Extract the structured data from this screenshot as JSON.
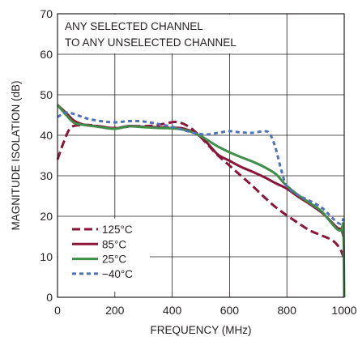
{
  "chart_data": {
    "type": "line",
    "title": "",
    "xlabel": "FREQUENCY (MHz)",
    "ylabel": "MAGNITUDE ISOLATION (dB)",
    "xlim": [
      0,
      1000
    ],
    "ylim": [
      0,
      70
    ],
    "x_ticks": [
      0,
      200,
      400,
      600,
      800,
      1000
    ],
    "y_ticks": [
      0,
      10,
      20,
      30,
      40,
      50,
      60,
      70
    ],
    "grid": true,
    "annotation_lines": [
      "ANY SELECTED CHANNEL",
      "TO ANY UNSELECTED CHANNEL"
    ],
    "legend_position": "bottom-left",
    "series": [
      {
        "name": "125°C",
        "color": "#8b1538",
        "dash": "long-dash",
        "points": [
          [
            0,
            34
          ],
          [
            20,
            38
          ],
          [
            45,
            41.8
          ],
          [
            80,
            42.5
          ],
          [
            120,
            42.5
          ],
          [
            160,
            42
          ],
          [
            200,
            41.8
          ],
          [
            260,
            42.2
          ],
          [
            320,
            42.3
          ],
          [
            370,
            42.8
          ],
          [
            410,
            43.3
          ],
          [
            440,
            42.8
          ],
          [
            470,
            41.5
          ],
          [
            500,
            39.5
          ],
          [
            530,
            37.2
          ],
          [
            560,
            35
          ],
          [
            600,
            32.5
          ],
          [
            640,
            30
          ],
          [
            680,
            27.5
          ],
          [
            720,
            24.8
          ],
          [
            760,
            22.3
          ],
          [
            800,
            20.2
          ],
          [
            840,
            18.3
          ],
          [
            880,
            16.5
          ],
          [
            920,
            15.3
          ],
          [
            960,
            14
          ],
          [
            985,
            12
          ],
          [
            997,
            10
          ]
        ]
      },
      {
        "name": "85°C",
        "color": "#8b1538",
        "dash": "solid",
        "points": [
          [
            0,
            47.5
          ],
          [
            30,
            45.5
          ],
          [
            60,
            43.5
          ],
          [
            100,
            42.5
          ],
          [
            150,
            42.2
          ],
          [
            200,
            41.7
          ],
          [
            250,
            42.3
          ],
          [
            300,
            42.1
          ],
          [
            350,
            42
          ],
          [
            400,
            41.8
          ],
          [
            430,
            41.8
          ],
          [
            460,
            41.2
          ],
          [
            500,
            39.6
          ],
          [
            530,
            37.5
          ],
          [
            560,
            35.2
          ],
          [
            600,
            33.7
          ],
          [
            640,
            32.2
          ],
          [
            680,
            31
          ],
          [
            720,
            29.7
          ],
          [
            760,
            28.2
          ],
          [
            800,
            26.8
          ],
          [
            840,
            24.8
          ],
          [
            880,
            23
          ],
          [
            920,
            21
          ],
          [
            950,
            19
          ],
          [
            975,
            17.2
          ],
          [
            990,
            16.7
          ],
          [
            997,
            15
          ]
        ]
      },
      {
        "name": "25°C",
        "color": "#3f8f4a",
        "dash": "solid",
        "points": [
          [
            0,
            47.5
          ],
          [
            30,
            45
          ],
          [
            60,
            43
          ],
          [
            100,
            42.5
          ],
          [
            150,
            42
          ],
          [
            200,
            41.6
          ],
          [
            250,
            42.2
          ],
          [
            300,
            42
          ],
          [
            350,
            41.8
          ],
          [
            400,
            41.7
          ],
          [
            430,
            41.5
          ],
          [
            460,
            41
          ],
          [
            500,
            39.8
          ],
          [
            530,
            38.5
          ],
          [
            560,
            37.2
          ],
          [
            600,
            35.8
          ],
          [
            640,
            34.6
          ],
          [
            680,
            33.5
          ],
          [
            720,
            32.2
          ],
          [
            760,
            30.5
          ],
          [
            780,
            29
          ],
          [
            800,
            27.5
          ],
          [
            840,
            25.2
          ],
          [
            880,
            23.3
          ],
          [
            920,
            21.3
          ],
          [
            950,
            18.8
          ],
          [
            975,
            16.8
          ],
          [
            990,
            16.5
          ],
          [
            997,
            17.2
          ],
          [
            1000,
            0
          ]
        ]
      },
      {
        "name": "−40°C",
        "color": "#4f72b8",
        "dash": "short-dash",
        "points": [
          [
            0,
            44.5
          ],
          [
            30,
            45.6
          ],
          [
            60,
            45.2
          ],
          [
            100,
            44.2
          ],
          [
            150,
            43.5
          ],
          [
            200,
            43.2
          ],
          [
            250,
            43.5
          ],
          [
            300,
            43.4
          ],
          [
            350,
            42.8
          ],
          [
            400,
            42.1
          ],
          [
            440,
            41.3
          ],
          [
            480,
            40.5
          ],
          [
            520,
            40.2
          ],
          [
            560,
            40.6
          ],
          [
            600,
            41
          ],
          [
            640,
            40.7
          ],
          [
            680,
            40.6
          ],
          [
            720,
            41
          ],
          [
            740,
            40.4
          ],
          [
            760,
            37
          ],
          [
            780,
            31.5
          ],
          [
            800,
            27.5
          ],
          [
            840,
            25.2
          ],
          [
            880,
            23.8
          ],
          [
            920,
            22.2
          ],
          [
            950,
            20.2
          ],
          [
            975,
            18.5
          ],
          [
            990,
            18.2
          ],
          [
            997,
            19.5
          ]
        ]
      }
    ]
  }
}
